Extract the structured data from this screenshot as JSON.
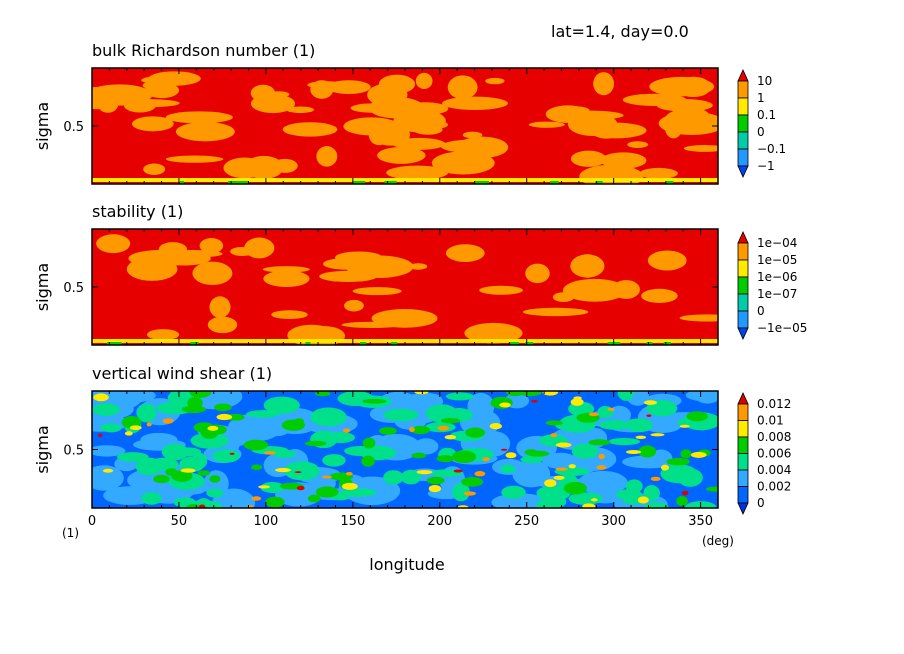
{
  "header": "lat=1.4, day=0.0",
  "unit_note": "(1)",
  "chart_data": [
    {
      "type": "heatmap",
      "title": "bulk Richardson number (1)",
      "ylabel": "sigma",
      "xlabel": "",
      "xlim": [
        0,
        360
      ],
      "ylim": [
        0,
        1
      ],
      "yticks": [
        0.5
      ],
      "ytick_labels": [
        "0.5"
      ],
      "colorbar": {
        "labels": [
          "10",
          "1",
          "0.1",
          "0",
          "−0.1",
          "−1"
        ],
        "colors": [
          "#e60000",
          "#ff9900",
          "#ffea00",
          "#00cc00",
          "#00ccaa",
          "#2299ff",
          "#0044ee"
        ]
      }
    },
    {
      "type": "heatmap",
      "title": "stability (1)",
      "ylabel": "sigma",
      "xlabel": "",
      "xlim": [
        0,
        360
      ],
      "ylim": [
        0,
        1
      ],
      "yticks": [
        0.5
      ],
      "ytick_labels": [
        "0.5"
      ],
      "colorbar": {
        "labels": [
          "1e−04",
          "1e−05",
          "1e−06",
          "1e−07",
          "0",
          "−1e−05"
        ],
        "colors": [
          "#e60000",
          "#ff9900",
          "#ffea00",
          "#00cc00",
          "#00ccaa",
          "#2299ff",
          "#0044ee"
        ]
      }
    },
    {
      "type": "heatmap",
      "title": "vertical wind shear (1)",
      "ylabel": "sigma",
      "xlabel": "longitude",
      "xunit": "(deg)",
      "xlim": [
        0,
        360
      ],
      "ylim": [
        0,
        1
      ],
      "xticks": [
        0,
        50,
        100,
        150,
        200,
        250,
        300,
        350
      ],
      "xtick_labels": [
        "0",
        "50",
        "100",
        "150",
        "200",
        "250",
        "300",
        "350"
      ],
      "yticks": [
        0.5
      ],
      "ytick_labels": [
        "0.5"
      ],
      "colorbar": {
        "labels": [
          "0.012",
          "0.01",
          "0.008",
          "0.006",
          "0.004",
          "0.002",
          "0"
        ],
        "colors": [
          "#dd0000",
          "#ff9900",
          "#ffea00",
          "#00cc00",
          "#00e08a",
          "#33aaff",
          "#0066ff",
          "#0033dd"
        ]
      }
    }
  ]
}
